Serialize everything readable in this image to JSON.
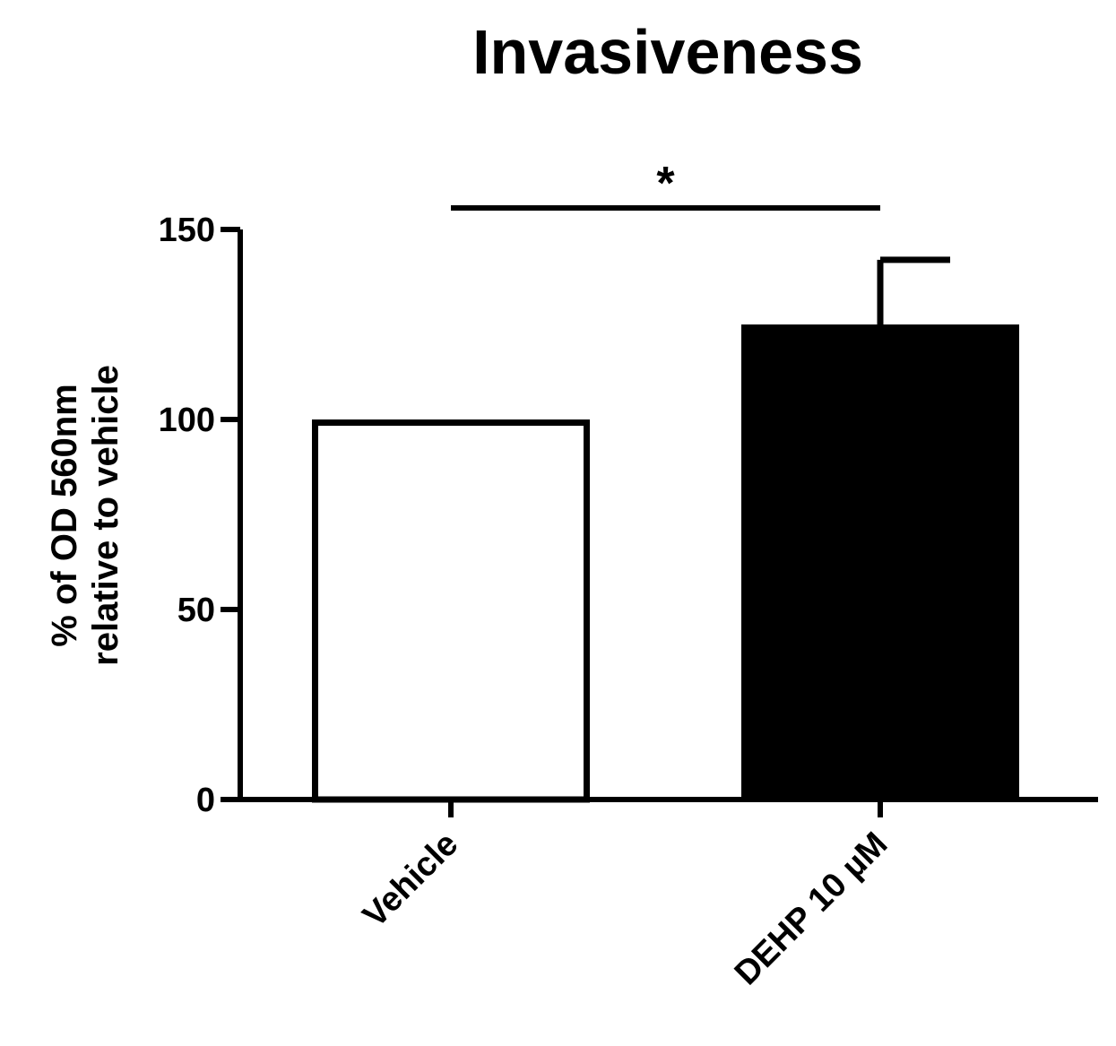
{
  "chart_data": {
    "type": "bar",
    "title": "Invasiveness",
    "ylabel_lines": [
      "% of OD 560nm",
      "relative to vehicle"
    ],
    "xlabel": "",
    "categories": [
      "Vehicle",
      "DEHP 10 µM"
    ],
    "values": [
      100,
      125
    ],
    "error_upper": [
      null,
      142
    ],
    "bar_fills": [
      "#ffffff",
      "#000000"
    ],
    "ylim": [
      0,
      150
    ],
    "yticks": [
      0,
      50,
      100,
      150
    ],
    "significance": {
      "label": "*",
      "between": [
        0,
        1
      ]
    },
    "grid": false,
    "legend": "none"
  }
}
